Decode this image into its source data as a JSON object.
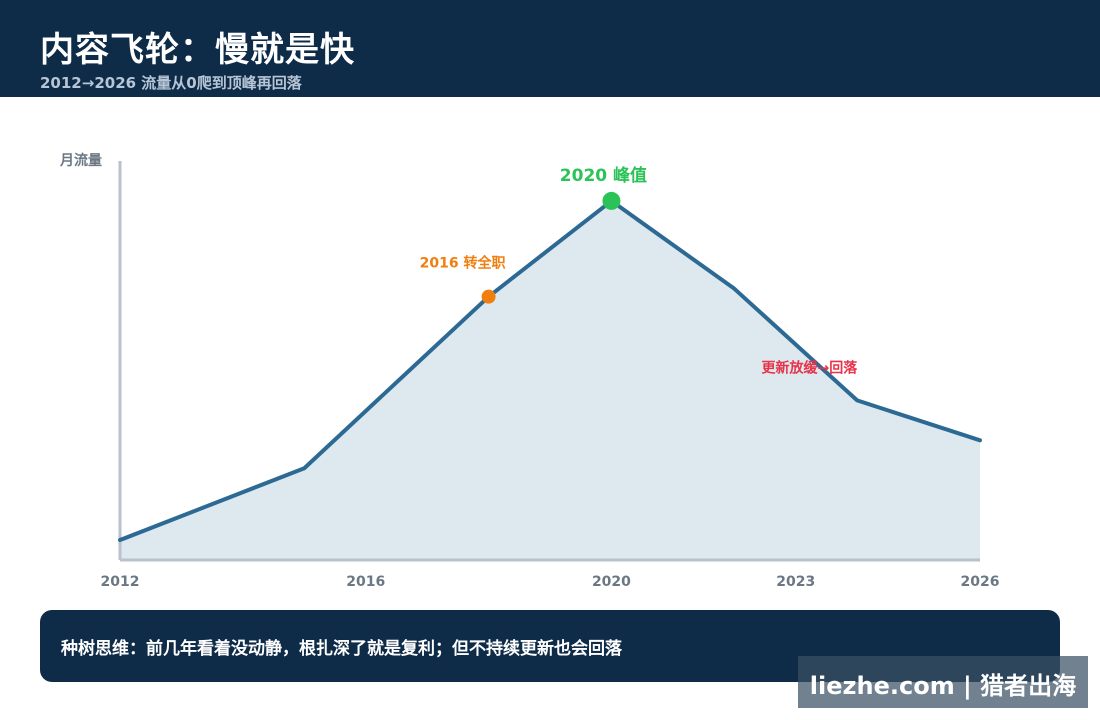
{
  "header": {
    "title": "内容飞轮：慢就是快",
    "subtitle": "2012→2026 流量从0爬到顶峰再回落"
  },
  "chart_data": {
    "type": "area",
    "ylabel": "月流量",
    "xlim": [
      2012,
      2026
    ],
    "ylim": [
      0,
      100
    ],
    "x_ticks": [
      2012,
      2016,
      2020,
      2023,
      2026
    ],
    "x_tick_labels": [
      "2012",
      "2016",
      "2020",
      "2023",
      "2026"
    ],
    "grid": false,
    "series": [
      {
        "x": [
          2012,
          2015,
          2018,
          2020,
          2022,
          2024,
          2026
        ],
        "y": [
          5,
          23,
          66,
          90,
          68,
          40,
          30
        ]
      }
    ],
    "annotations": [
      {
        "x": 2018,
        "y": 66,
        "text": "2016 转全职",
        "color": "#f07f10",
        "marker": true,
        "marker_size": "small"
      },
      {
        "x": 2020,
        "y": 90,
        "text": "2020 峰值",
        "color": "#2bc257",
        "marker": true,
        "marker_size": "large"
      },
      {
        "x": 2023.5,
        "y": 47,
        "text": "更新放缓→回落",
        "color": "#e8334a",
        "marker": false
      }
    ],
    "colors": {
      "line": "#2c6a94",
      "fill": "#dde8ef",
      "axis": "#b9c2cc",
      "tick_text": "#6b7884"
    }
  },
  "note": {
    "text": "种树思维：前几年看着没动静，根扎深了就是复利；但不持续更新也会回落"
  },
  "watermark": {
    "text": "liezhe.com | 猎者出海"
  }
}
